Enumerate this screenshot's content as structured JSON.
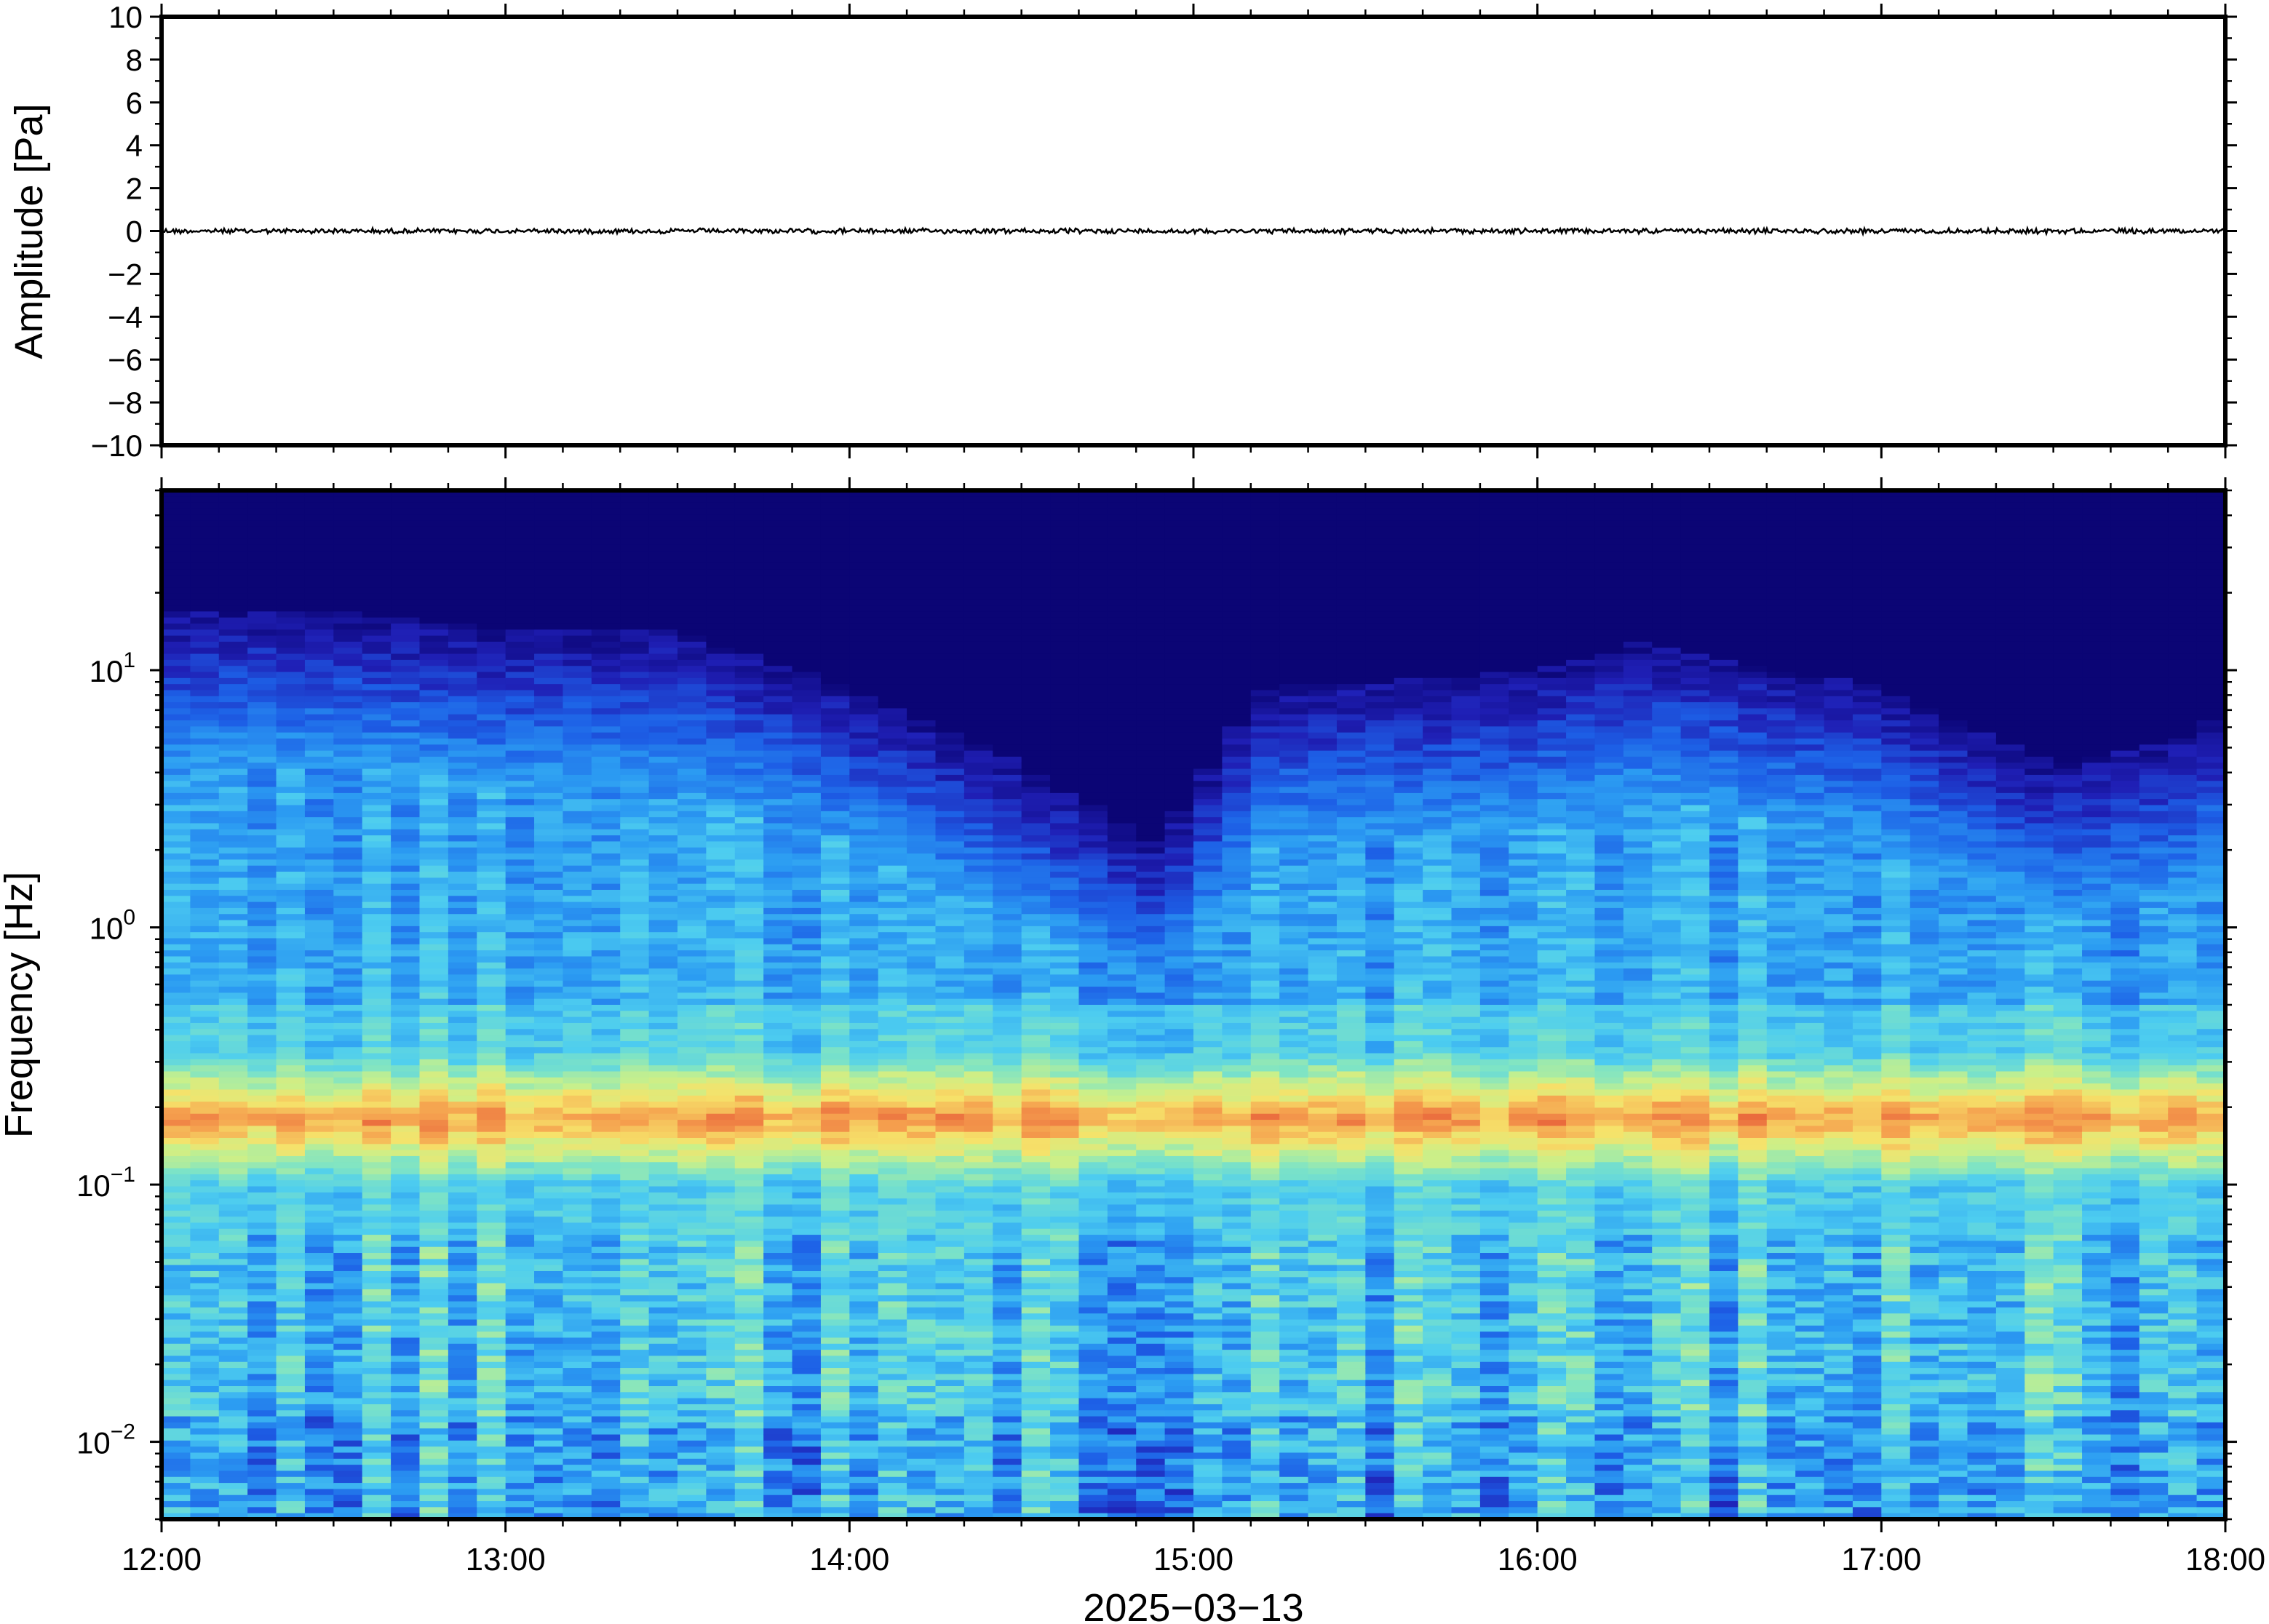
{
  "chart_data": [
    {
      "type": "line",
      "panel": "waveform",
      "ylabel": "Amplitude [Pa]",
      "ylim": [
        -10,
        10
      ],
      "yticks": [
        10,
        8,
        6,
        4,
        2,
        0,
        -2,
        -4,
        -6,
        -8,
        -10
      ],
      "ytick_labels": [
        "10",
        "8",
        "6",
        "4",
        "2",
        "0",
        "−2",
        "−4",
        "−6",
        "−8",
        "−10"
      ],
      "xlim": [
        "12:00",
        "18:00"
      ],
      "series": [
        {
          "values_description_free": true,
          "baseline": 0,
          "amplitude_peak": 0.1,
          "color": "#000000"
        }
      ]
    },
    {
      "type": "heatmap",
      "panel": "spectrogram",
      "ylabel": "Frequency [Hz]",
      "yscale": "log",
      "ylim": [
        0.005,
        50
      ],
      "yticks": [
        0.01,
        0.1,
        1,
        10
      ],
      "ytick_labels": [
        {
          "base": "10",
          "exp": "−2"
        },
        {
          "base": "10",
          "exp": "−1"
        },
        {
          "base": "10",
          "exp": "0"
        },
        {
          "base": "10",
          "exp": "1"
        }
      ],
      "xlim": [
        "12:00",
        "18:00"
      ],
      "xticks": [
        "12:00",
        "13:00",
        "14:00",
        "15:00",
        "16:00",
        "17:00",
        "18:00"
      ],
      "xlabel": "2025−03−13",
      "colormap": [
        "#0b0575",
        "#1f1fb5",
        "#1d5fe6",
        "#2b9bf2",
        "#4dcdf0",
        "#7fe4c4",
        "#c9f08a",
        "#f6e26a",
        "#f5a04e",
        "#e8603a"
      ],
      "ridge_frequency_hz": 0.18,
      "noise_floor_top_frequency_hz": [
        [
          12.0,
          12
        ],
        [
          12.5,
          12
        ],
        [
          13.0,
          10
        ],
        [
          13.5,
          10
        ],
        [
          14.0,
          6
        ],
        [
          14.5,
          3
        ],
        [
          14.9,
          1.5
        ],
        [
          15.2,
          6
        ],
        [
          16.0,
          7
        ],
        [
          16.3,
          9
        ],
        [
          17.0,
          6
        ],
        [
          17.5,
          3
        ],
        [
          17.9,
          4
        ],
        [
          18.0,
          5
        ]
      ]
    }
  ]
}
